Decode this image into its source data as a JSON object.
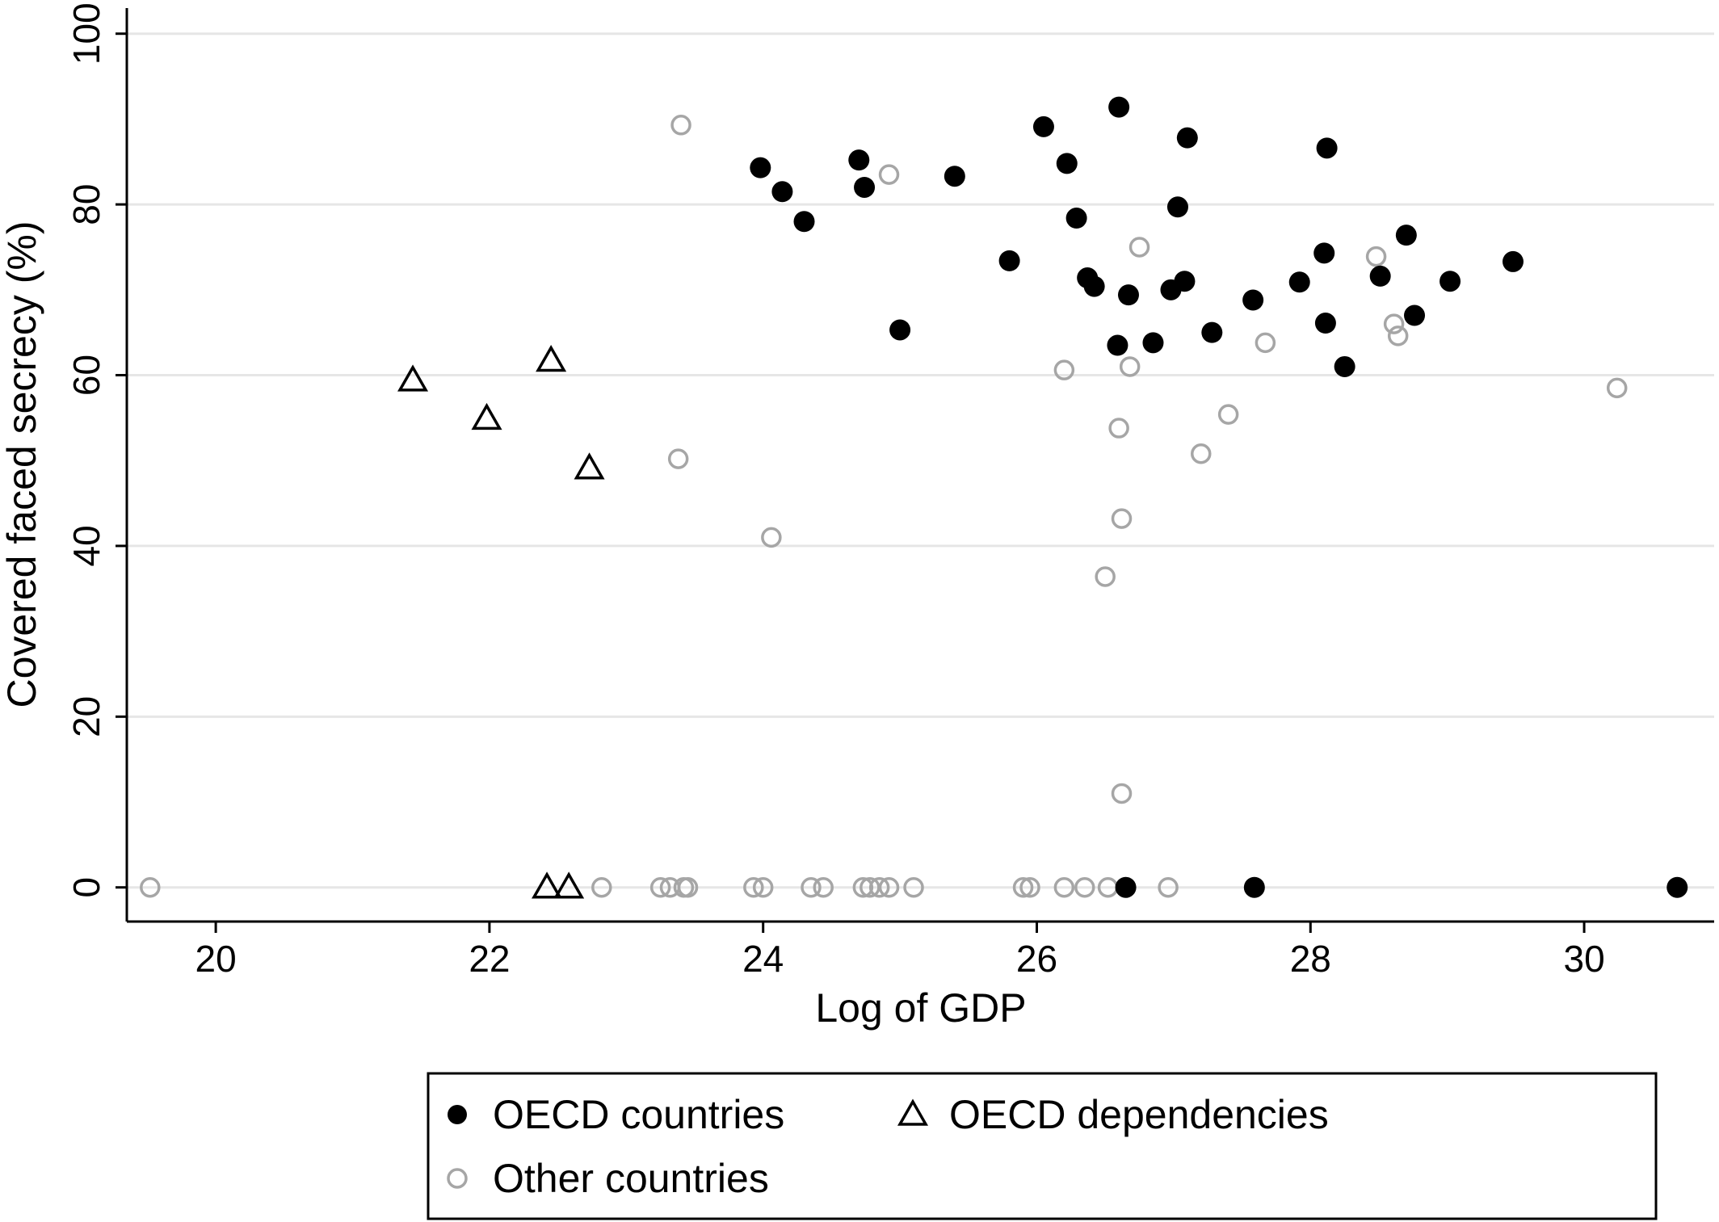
{
  "chart_data": {
    "type": "scatter",
    "xlabel": "Log of GDP",
    "ylabel": "Covered faced secrecy (%)",
    "xlim": [
      19.35,
      30.95
    ],
    "ylim": [
      -4,
      103
    ],
    "xticks": [
      20,
      22,
      24,
      26,
      28,
      30
    ],
    "yticks": [
      0,
      20,
      40,
      60,
      80,
      100
    ],
    "grid": "horizontal",
    "legend_placement": "bottom",
    "series": [
      {
        "name": "OECD countries",
        "marker": "filled-circle",
        "color": "#000000",
        "x": [
          23.98,
          24.14,
          24.3,
          24.7,
          24.74,
          25.0,
          25.4,
          25.8,
          26.05,
          26.22,
          26.29,
          26.37,
          26.42,
          26.59,
          26.6,
          26.67,
          26.85,
          26.98,
          27.03,
          27.08,
          27.1,
          27.28,
          27.58,
          27.92,
          28.1,
          28.11,
          28.12,
          28.25,
          28.51,
          28.7,
          28.76,
          29.02,
          29.48,
          26.65,
          27.59,
          30.68
        ],
        "y": [
          84.3,
          81.5,
          78.0,
          85.2,
          82.0,
          65.3,
          83.3,
          73.4,
          89.1,
          84.8,
          78.4,
          71.4,
          70.4,
          63.5,
          91.4,
          69.4,
          63.8,
          70.0,
          79.7,
          71.0,
          87.8,
          65.0,
          68.8,
          70.9,
          74.3,
          66.1,
          86.6,
          61.0,
          71.6,
          76.4,
          67.0,
          71.0,
          73.3,
          0,
          0,
          0
        ]
      },
      {
        "name": "OECD dependencies",
        "marker": "hollow-triangle",
        "color": "#000000",
        "x": [
          21.44,
          21.98,
          22.45,
          22.73,
          22.42,
          22.58
        ],
        "y": [
          59.4,
          54.9,
          61.7,
          49.1,
          0,
          0
        ]
      },
      {
        "name": "Other countries",
        "marker": "hollow-circle",
        "color": "#a6a6a6",
        "x": [
          23.4,
          24.92,
          26.75,
          28.48,
          26.2,
          26.68,
          27.67,
          28.61,
          28.64,
          30.24,
          26.6,
          27.4,
          27.2,
          23.38,
          24.06,
          26.62,
          26.5,
          26.62,
          19.52,
          22.82,
          23.25,
          23.32,
          23.42,
          23.45,
          23.93,
          24.0,
          24.35,
          24.44,
          24.73,
          24.78,
          24.85,
          24.92,
          25.1,
          25.9,
          25.95,
          26.2,
          26.35,
          26.52,
          26.96
        ],
        "y": [
          89.3,
          83.5,
          75.0,
          73.9,
          60.6,
          61.0,
          63.8,
          66.0,
          64.6,
          58.5,
          53.8,
          55.4,
          50.8,
          50.2,
          41.0,
          43.2,
          36.4,
          11.0,
          0,
          0,
          0,
          0,
          0,
          0,
          0,
          0,
          0,
          0,
          0,
          0,
          0,
          0,
          0,
          0,
          0,
          0,
          0,
          0,
          0
        ]
      }
    ]
  },
  "legend": {
    "items": [
      "OECD countries",
      "OECD dependencies",
      "Other countries"
    ]
  }
}
